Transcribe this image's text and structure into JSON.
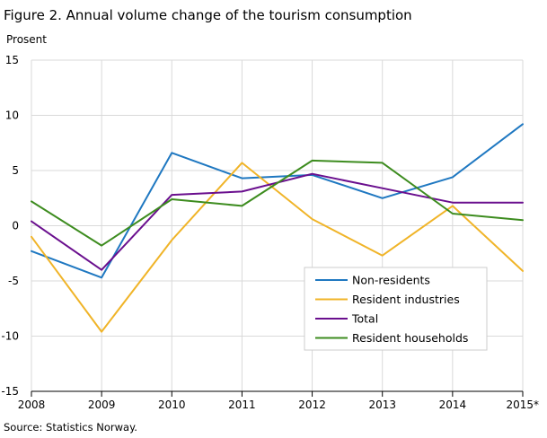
{
  "chart_data": {
    "type": "line",
    "title": "Figure 2. Annual volume change of the tourism consumption",
    "ylabel": "Prosent",
    "xlabel": "",
    "source": "Source: Statistics Norway.",
    "x": [
      "2008",
      "2009",
      "2010",
      "2011",
      "2012",
      "2013",
      "2014",
      "2015*"
    ],
    "ylim": [
      -15,
      15
    ],
    "yticks": [
      15,
      10,
      5,
      0,
      -5,
      -10,
      -15
    ],
    "grid": true,
    "legend_position": "bottom-right",
    "series": [
      {
        "name": "Non-residents",
        "color": "#1f78c1",
        "values": [
          -2.3,
          -4.7,
          6.6,
          4.3,
          4.6,
          2.5,
          4.4,
          9.2
        ]
      },
      {
        "name": "Resident industries",
        "color": "#f0b428",
        "values": [
          -1.0,
          -9.6,
          -1.3,
          5.7,
          0.6,
          -2.7,
          1.8,
          -4.1
        ]
      },
      {
        "name": "Total",
        "color": "#6a0f8e",
        "values": [
          0.4,
          -4.0,
          2.8,
          3.1,
          4.7,
          3.4,
          2.1,
          2.1
        ]
      },
      {
        "name": "Resident households",
        "color": "#3d8c1f",
        "values": [
          2.2,
          -1.8,
          2.4,
          1.8,
          5.9,
          5.7,
          1.1,
          0.5
        ]
      }
    ]
  }
}
